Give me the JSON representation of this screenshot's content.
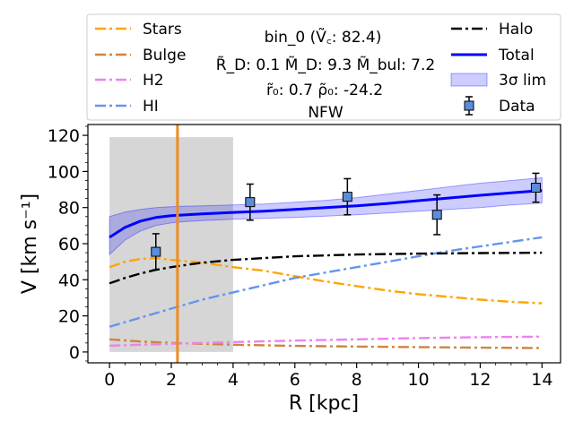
{
  "chart_data": {
    "type": "line",
    "header": {
      "lines": [
        "bin_0 (Ṽ꜀: 82.4)",
        "R̃_D: 0.1  M̃_D: 9.3 M̃_bul: 7.2",
        "r̃₀: 0.7   ρ̃₀: -24.2",
        "NFW"
      ]
    },
    "xlabel": "R [kpc]",
    "ylabel": "V [km s⁻¹]",
    "xlim": [
      -0.7,
      14.6
    ],
    "ylim": [
      -6,
      126
    ],
    "xticks": [
      0,
      2,
      4,
      6,
      8,
      10,
      12,
      14
    ],
    "yticks": [
      0,
      20,
      40,
      60,
      80,
      100,
      120
    ],
    "grid": false,
    "legend_position": "top, outside plot",
    "shaded_region": {
      "x": [
        0,
        4
      ],
      "ylim": [
        0,
        119
      ],
      "color": "#d6d6d6"
    },
    "vertical_line": {
      "x": 2.2,
      "color": "#f08c1e"
    },
    "series": [
      {
        "name": "Stars",
        "style": "dashdot",
        "color": "#ffa500",
        "x": [
          0,
          0.5,
          1,
          1.5,
          2,
          3,
          4,
          5,
          6,
          7,
          8,
          9,
          10,
          11,
          12,
          13,
          14
        ],
        "y": [
          47,
          50,
          51.5,
          52,
          51,
          49.5,
          47,
          45,
          42,
          39,
          36.5,
          34,
          32,
          30.5,
          29,
          27.8,
          27
        ]
      },
      {
        "name": "Bulge",
        "style": "dashdot",
        "color": "#cd853f",
        "x": [
          0,
          1,
          2,
          3,
          4,
          6,
          8,
          10,
          12,
          14
        ],
        "y": [
          7,
          5.8,
          5,
          4.5,
          4,
          3.4,
          3,
          2.7,
          2.4,
          2.2
        ]
      },
      {
        "name": "H2",
        "style": "dashdot",
        "color": "#ee82ee",
        "x": [
          0,
          2,
          4,
          6,
          8,
          10,
          12,
          14
        ],
        "y": [
          3.5,
          4.5,
          5.5,
          6.3,
          7,
          7.7,
          8.2,
          8.5
        ]
      },
      {
        "name": "HI",
        "style": "dashdot",
        "color": "#6495ed",
        "x": [
          0,
          1,
          2,
          3,
          4,
          5,
          6,
          7,
          8,
          9,
          10,
          11,
          12,
          13,
          14
        ],
        "y": [
          14,
          19,
          24,
          29,
          33,
          37,
          41,
          44,
          47,
          50,
          53,
          56,
          58.5,
          61,
          63.5
        ]
      },
      {
        "name": "Halo",
        "style": "dashdot",
        "color": "#000000",
        "x": [
          0,
          0.5,
          1,
          1.5,
          2,
          3,
          4,
          5,
          6,
          8,
          10,
          12,
          14
        ],
        "y": [
          38,
          41,
          43.5,
          45.5,
          47,
          49.5,
          51,
          52,
          53,
          54,
          54.5,
          54.8,
          55
        ]
      },
      {
        "name": "Total",
        "style": "solid",
        "color": "#0000ff",
        "x": [
          0,
          0.5,
          1,
          1.5,
          2,
          2.5,
          3,
          4,
          5,
          6,
          7,
          8,
          9,
          10,
          11,
          12,
          13,
          14
        ],
        "y": [
          63.5,
          69,
          72.5,
          74.5,
          75.5,
          76,
          76.5,
          77.3,
          78,
          79,
          80,
          81,
          82.3,
          83.8,
          85.3,
          86.8,
          88.2,
          89.5
        ]
      }
    ],
    "band": {
      "name": "3σ lim",
      "color": "#0000ff",
      "opacity": 0.2,
      "x": [
        0,
        0.5,
        1,
        1.5,
        2,
        2.5,
        3,
        4,
        5,
        6,
        7,
        8,
        9,
        10,
        11,
        12,
        13,
        14
      ],
      "lower": [
        54,
        62,
        67,
        70,
        71.5,
        72.3,
        72.8,
        73.5,
        74,
        74.5,
        75.3,
        76,
        77,
        78,
        79,
        80,
        81.5,
        82.5
      ],
      "upper": [
        75,
        77.5,
        79,
        80,
        80.5,
        80.8,
        81,
        81.5,
        82,
        83,
        84,
        85.5,
        87.5,
        89.5,
        91.5,
        93.5,
        95,
        96.5
      ]
    },
    "points": {
      "name": "Data",
      "color": "#5b8ddd",
      "x": [
        1.5,
        4.55,
        7.7,
        10.6,
        13.8
      ],
      "y": [
        55.5,
        83,
        86,
        76,
        91
      ],
      "err": [
        10,
        10,
        10,
        11,
        8
      ]
    }
  }
}
